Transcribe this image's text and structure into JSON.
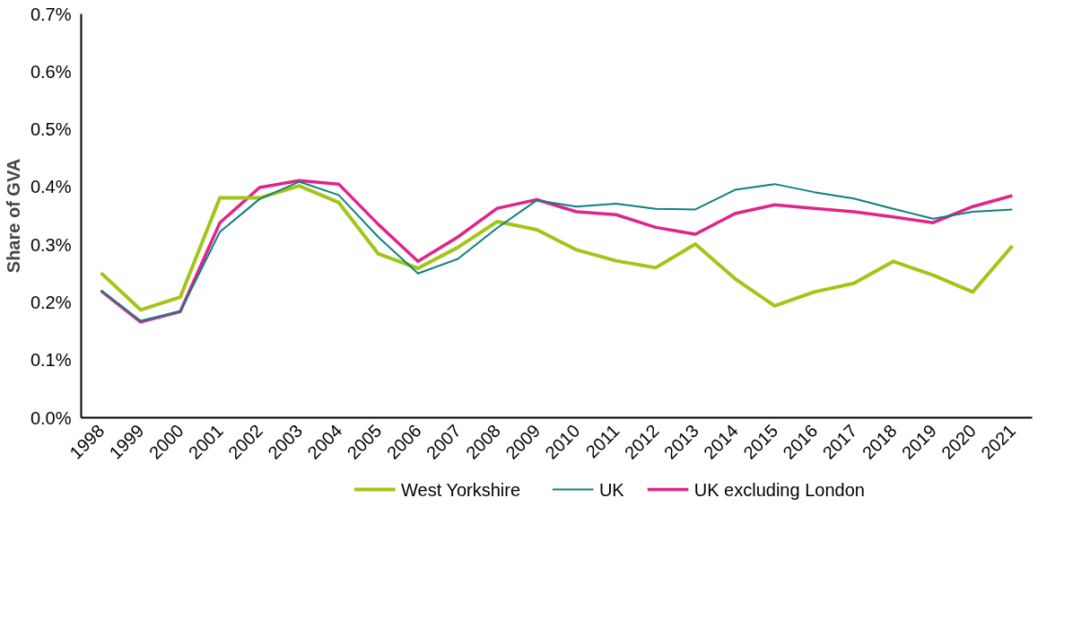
{
  "chart_data": {
    "type": "line",
    "ylabel": "Share of GVA",
    "categories": [
      "1998",
      "1999",
      "2000",
      "2001",
      "2002",
      "2003",
      "2004",
      "2005",
      "2006",
      "2007",
      "2008",
      "2009",
      "2010",
      "2011",
      "2012",
      "2013",
      "2014",
      "2015",
      "2016",
      "2017",
      "2018",
      "2019",
      "2020",
      "2021"
    ],
    "series": [
      {
        "name": "West Yorkshire",
        "color": "#a2c516",
        "values": [
          0.251,
          0.187,
          0.209,
          0.381,
          0.381,
          0.402,
          0.373,
          0.284,
          0.259,
          0.295,
          0.34,
          0.326,
          0.291,
          0.272,
          0.26,
          0.301,
          0.241,
          0.194,
          0.218,
          0.233,
          0.271,
          0.247,
          0.218,
          0.298
        ]
      },
      {
        "name": "UK",
        "color": "#0e8080",
        "values": [
          0.221,
          0.168,
          0.184,
          0.322,
          0.379,
          0.409,
          0.386,
          0.313,
          0.25,
          0.275,
          0.329,
          0.377,
          0.366,
          0.371,
          0.362,
          0.361,
          0.395,
          0.405,
          0.391,
          0.38,
          0.362,
          0.345,
          0.357,
          0.361
        ]
      },
      {
        "name": "UK excluding London",
        "color": "#e0248a",
        "values": [
          0.22,
          0.166,
          0.184,
          0.338,
          0.399,
          0.411,
          0.405,
          0.335,
          0.271,
          0.313,
          0.363,
          0.378,
          0.357,
          0.352,
          0.33,
          0.318,
          0.354,
          0.369,
          0.363,
          0.357,
          0.348,
          0.338,
          0.366,
          0.385
        ]
      }
    ],
    "ylim": [
      0,
      0.7
    ],
    "yticks": [
      {
        "value": 0,
        "label": "0.0%"
      },
      {
        "value": 0.1,
        "label": "0.1%"
      },
      {
        "value": 0.2,
        "label": "0.2%"
      },
      {
        "value": 0.3,
        "label": "0.3%"
      },
      {
        "value": 0.4,
        "label": "0.4%"
      },
      {
        "value": 0.5,
        "label": "0.5%"
      },
      {
        "value": 0.6,
        "label": "0.6%"
      },
      {
        "value": 0.7,
        "label": "0.7%"
      }
    ],
    "grid": false,
    "legend": "bottom",
    "marker": "none",
    "line_style": "solid"
  }
}
